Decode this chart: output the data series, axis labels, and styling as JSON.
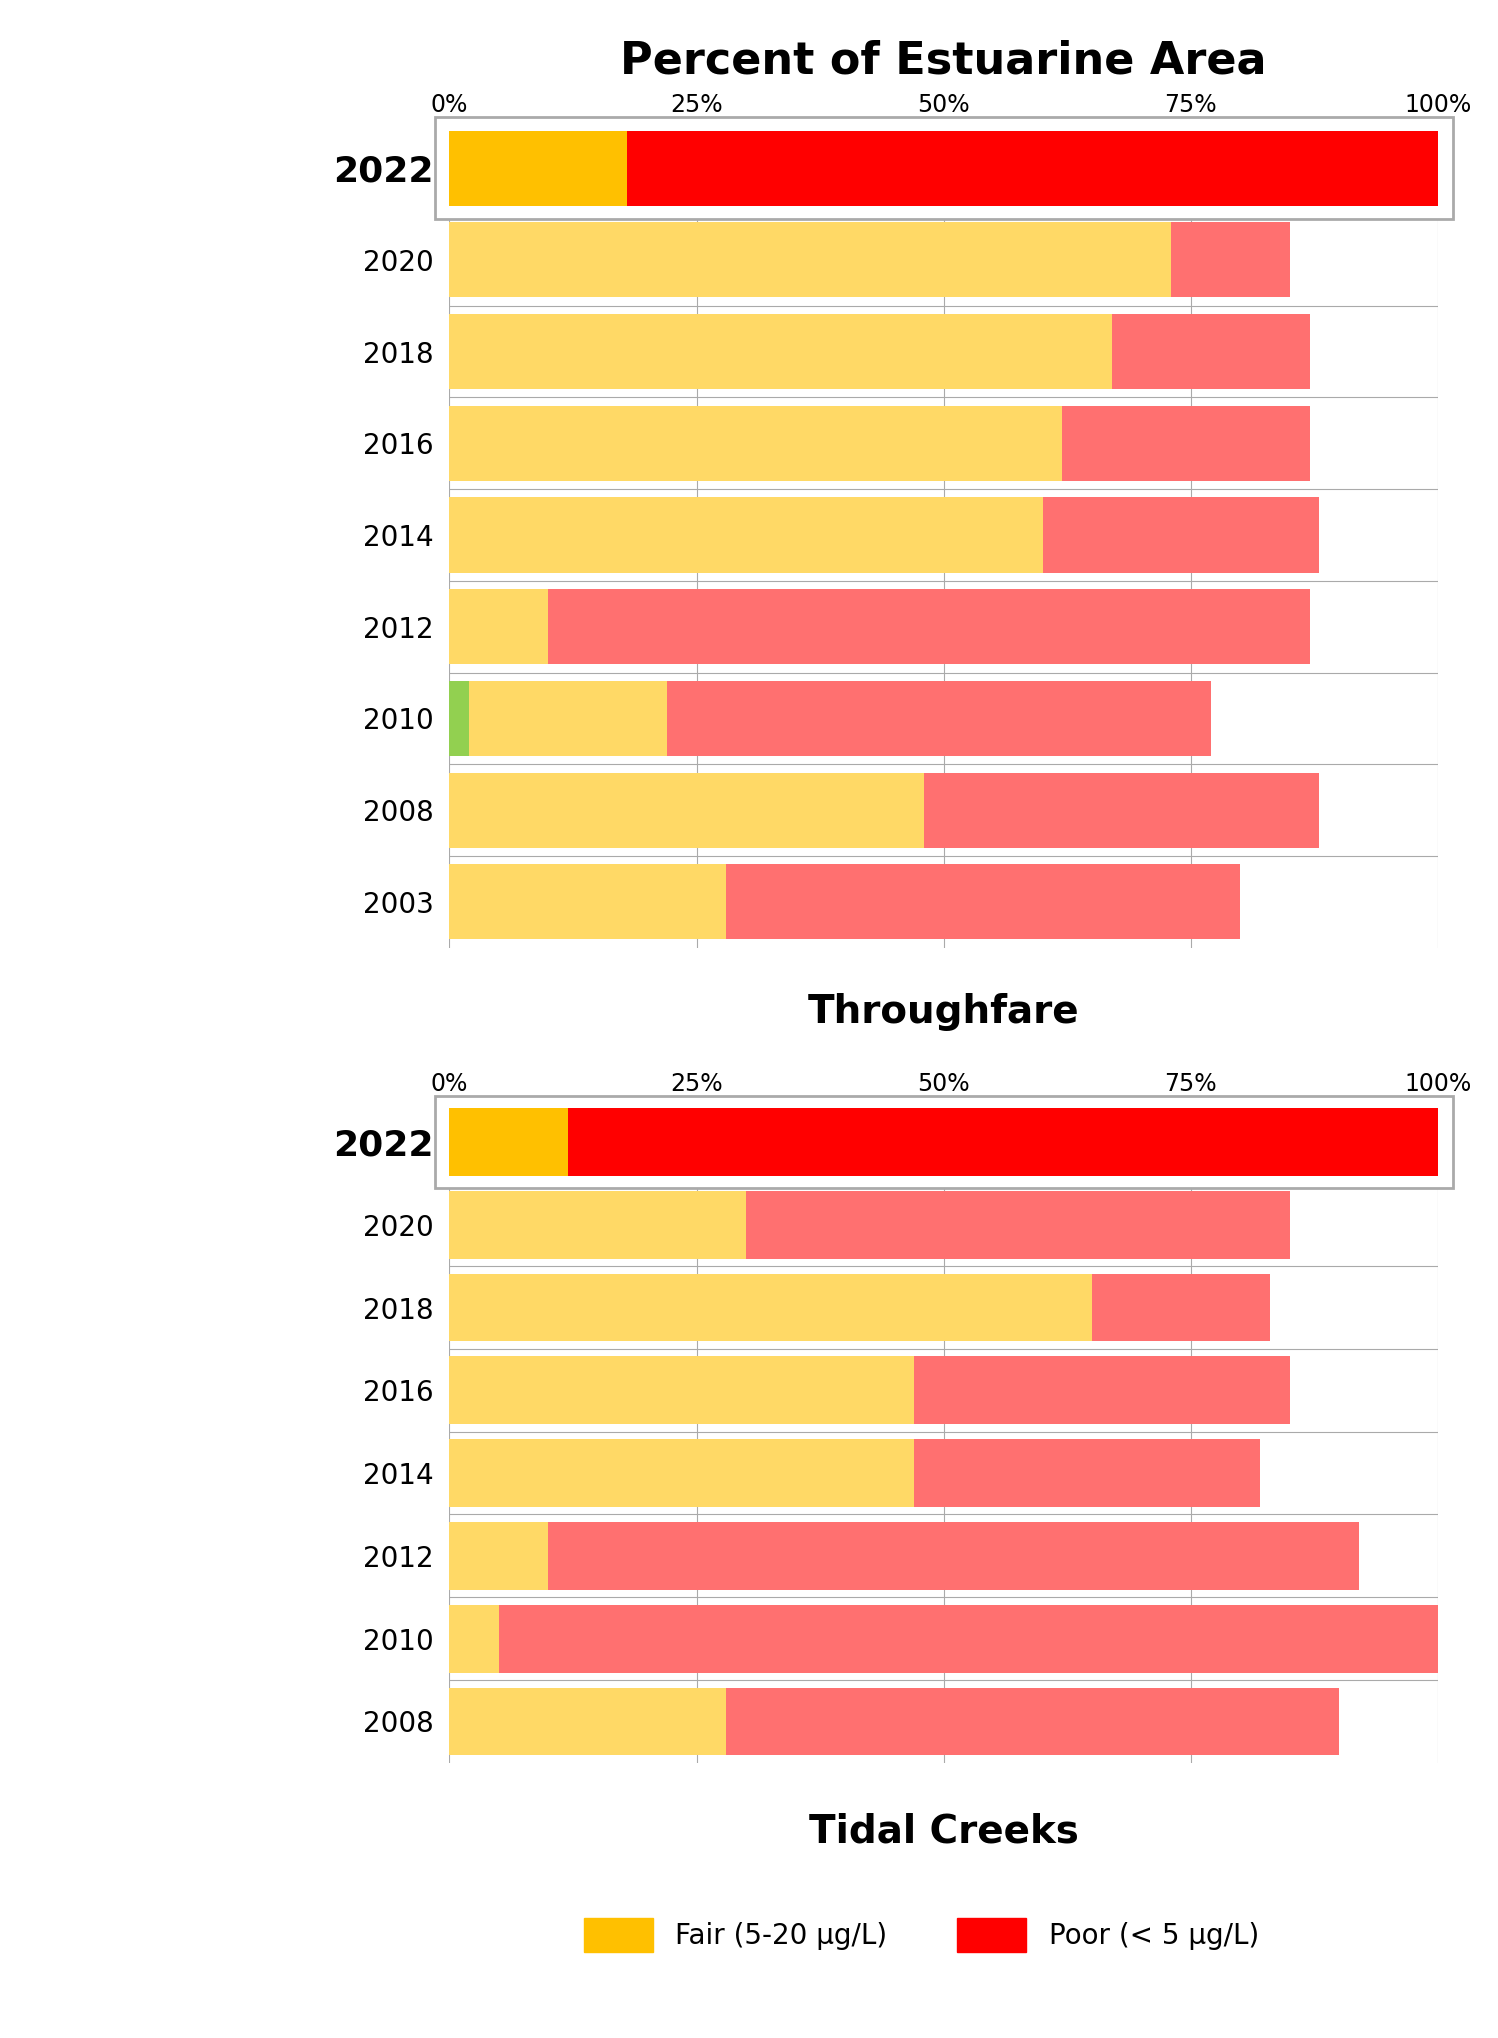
{
  "title": "Percent of Estuarine Area",
  "throughfare_label": "Throughfare",
  "tidal_creeks_label": "Tidal Creeks",
  "throughfare_years": [
    "2022",
    "2020",
    "2018",
    "2016",
    "2014",
    "2012",
    "2010",
    "2008",
    "2003"
  ],
  "throughfare_fair": [
    18,
    73,
    67,
    62,
    60,
    10,
    20,
    48,
    28
  ],
  "throughfare_good": [
    0,
    0,
    0,
    0,
    0,
    0,
    2,
    0,
    0
  ],
  "throughfare_poor": [
    82,
    12,
    20,
    25,
    28,
    77,
    55,
    40,
    52
  ],
  "tidal_years": [
    "2022",
    "2020",
    "2018",
    "2016",
    "2014",
    "2012",
    "2010",
    "2008"
  ],
  "tidal_fair": [
    12,
    30,
    65,
    47,
    47,
    10,
    5,
    28
  ],
  "tidal_good": [
    0,
    0,
    0,
    0,
    0,
    0,
    0,
    0
  ],
  "tidal_poor": [
    88,
    55,
    18,
    38,
    35,
    82,
    95,
    62
  ],
  "color_fair_bright": "#FFC000",
  "color_fair_light": "#FFD966",
  "color_poor_bright": "#FF0000",
  "color_poor_light": "#FF7070",
  "color_good": "#92D050",
  "legend_fair": "Fair (5-20 μg/L)",
  "legend_poor": "Poor (< 5 μg/L)",
  "xlim": [
    0,
    100
  ],
  "xticks": [
    0,
    25,
    50,
    75,
    100
  ],
  "xticklabels": [
    "0%",
    "25%",
    "50%",
    "75%",
    "100%"
  ]
}
